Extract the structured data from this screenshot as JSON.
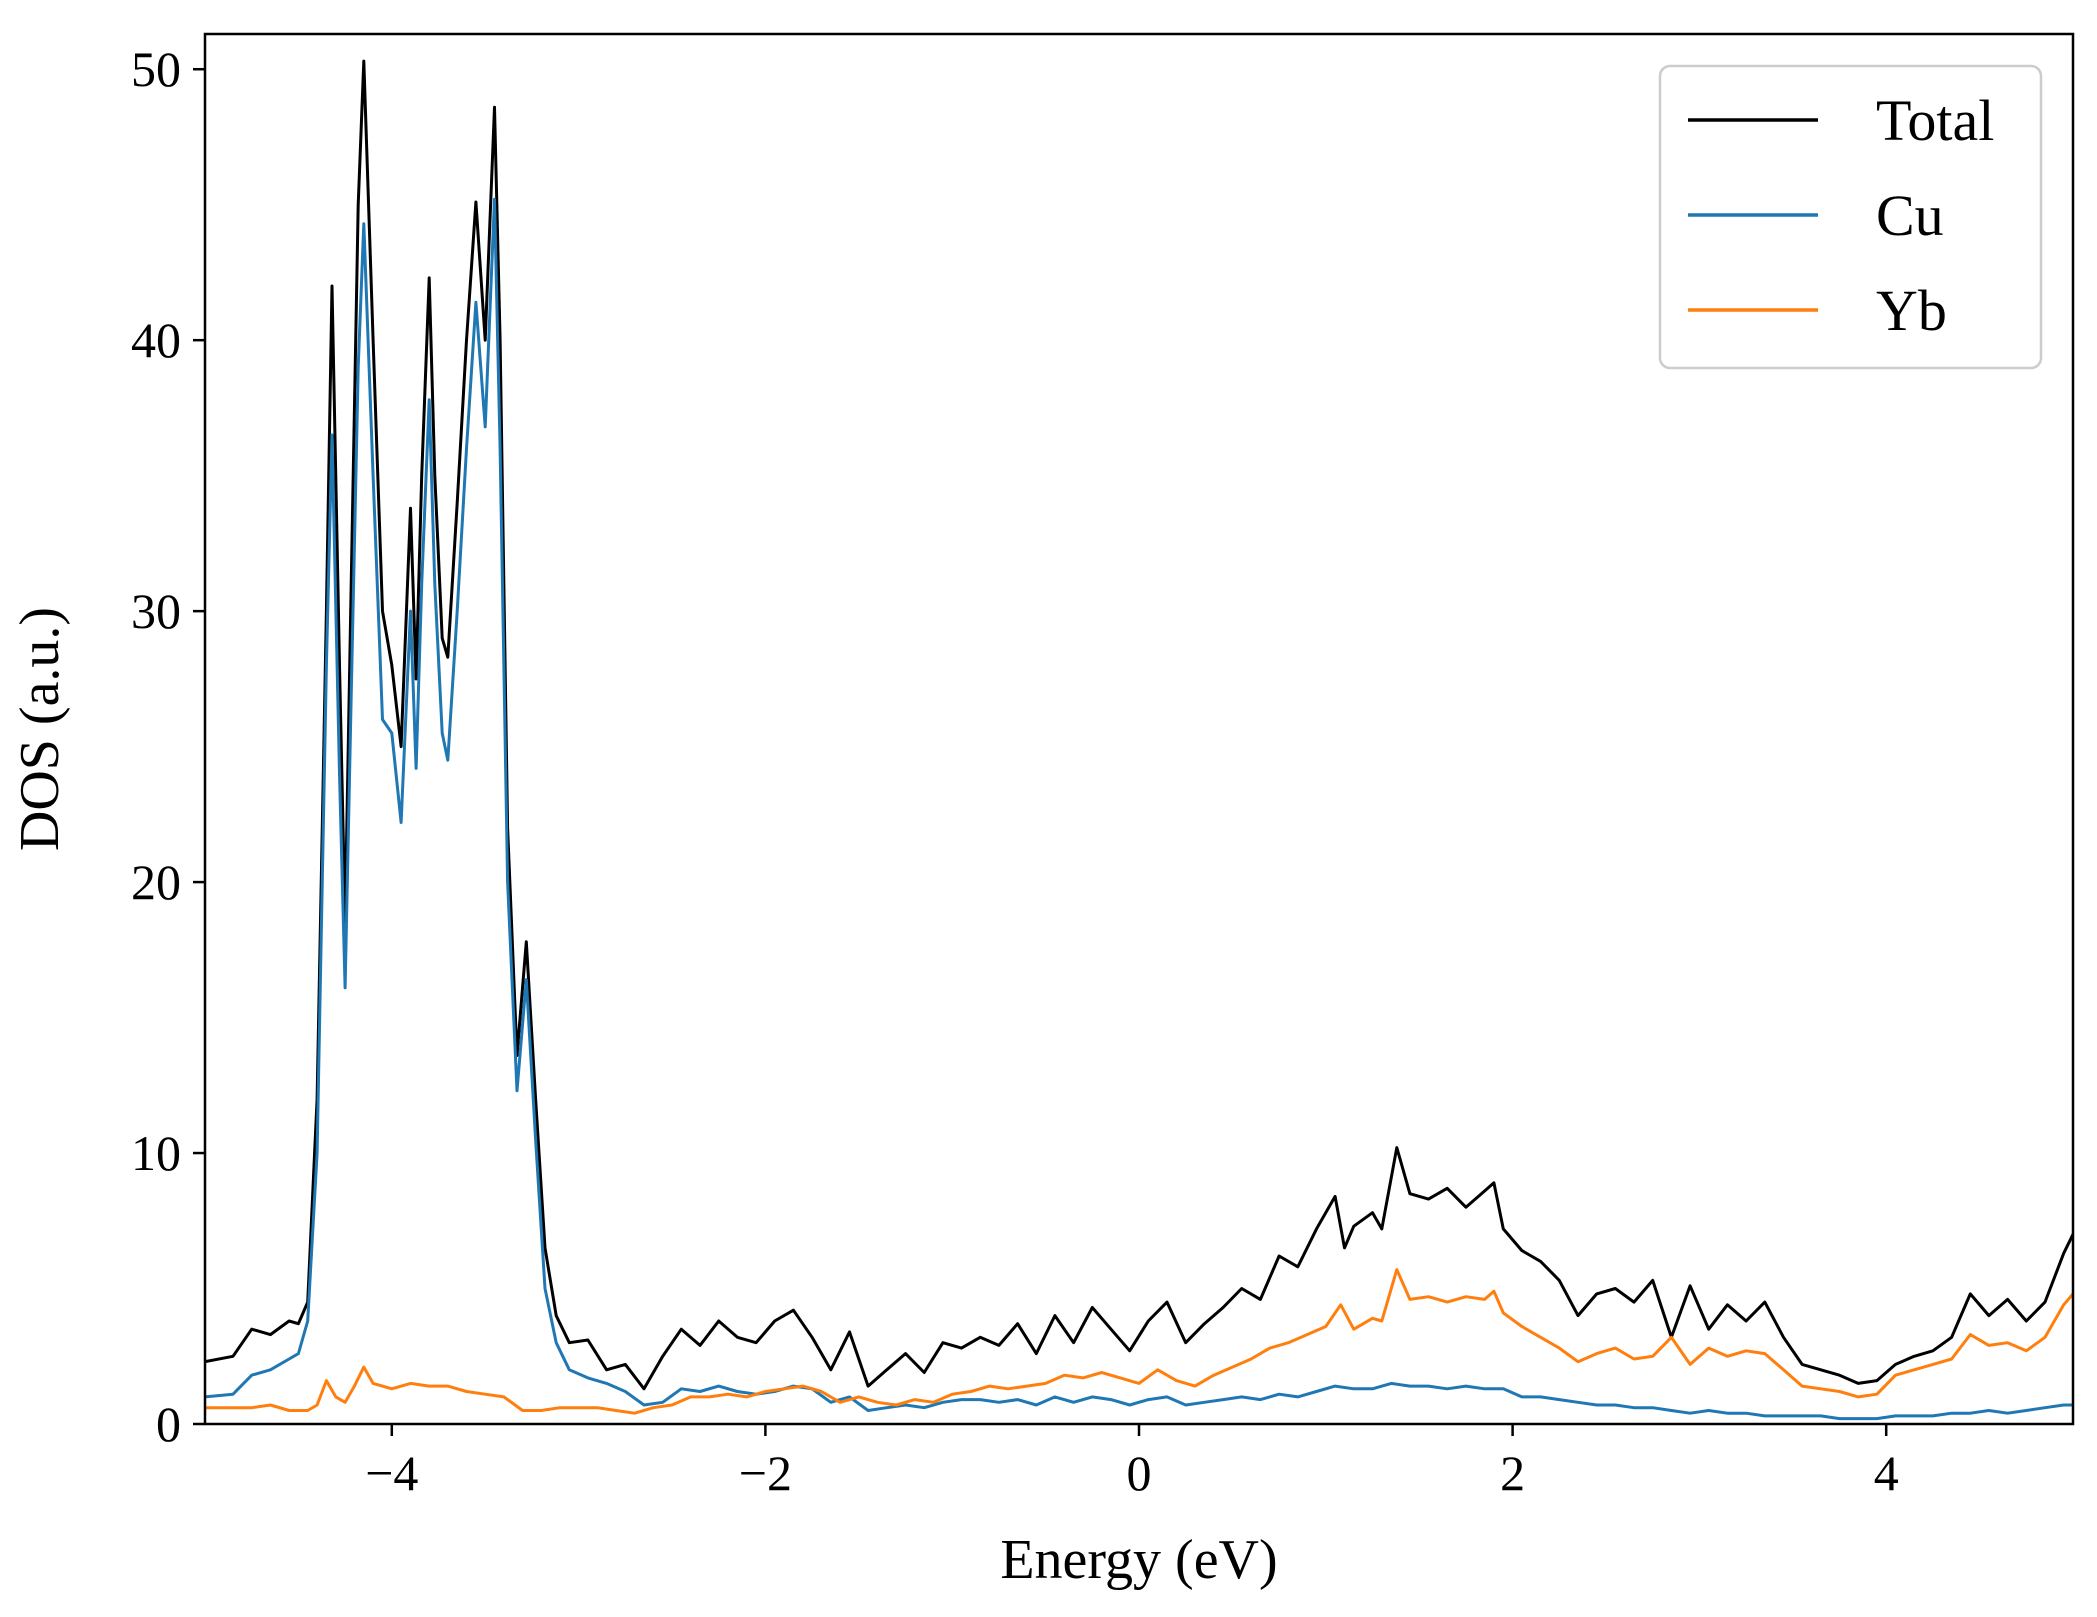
{
  "chart_data": {
    "type": "line",
    "xlabel": "Energy (eV)",
    "ylabel": "DOS (a.u.)",
    "xlim": [
      -5,
      5
    ],
    "ylim": [
      0,
      51.3
    ],
    "xticks": [
      -4,
      -2,
      0,
      2,
      4
    ],
    "xtick_labels": [
      "−4",
      "−2",
      "0",
      "2",
      "4"
    ],
    "yticks": [
      0,
      10,
      20,
      30,
      40,
      50
    ],
    "ytick_labels": [
      "0",
      "10",
      "20",
      "30",
      "40",
      "50"
    ],
    "grid": false,
    "legend_position": "top-right",
    "series": [
      {
        "name": "Total",
        "color": "#000000",
        "x": [
          -5.0,
          -4.85,
          -4.75,
          -4.65,
          -4.55,
          -4.5,
          -4.45,
          -4.4,
          -4.35,
          -4.32,
          -4.28,
          -4.25,
          -4.22,
          -4.18,
          -4.15,
          -4.1,
          -4.05,
          -4.0,
          -3.95,
          -3.9,
          -3.87,
          -3.84,
          -3.8,
          -3.77,
          -3.73,
          -3.7,
          -3.65,
          -3.6,
          -3.55,
          -3.5,
          -3.45,
          -3.42,
          -3.38,
          -3.33,
          -3.28,
          -3.23,
          -3.18,
          -3.12,
          -3.05,
          -2.95,
          -2.85,
          -2.75,
          -2.65,
          -2.55,
          -2.45,
          -2.35,
          -2.25,
          -2.15,
          -2.05,
          -1.95,
          -1.85,
          -1.75,
          -1.65,
          -1.55,
          -1.45,
          -1.35,
          -1.25,
          -1.15,
          -1.05,
          -0.95,
          -0.85,
          -0.75,
          -0.65,
          -0.55,
          -0.45,
          -0.35,
          -0.25,
          -0.15,
          -0.05,
          0.05,
          0.15,
          0.25,
          0.35,
          0.45,
          0.55,
          0.65,
          0.75,
          0.85,
          0.95,
          1.05,
          1.1,
          1.15,
          1.25,
          1.3,
          1.38,
          1.45,
          1.55,
          1.65,
          1.75,
          1.85,
          1.9,
          1.95,
          2.05,
          2.15,
          2.25,
          2.35,
          2.45,
          2.55,
          2.65,
          2.75,
          2.85,
          2.95,
          3.05,
          3.15,
          3.25,
          3.35,
          3.45,
          3.55,
          3.65,
          3.75,
          3.85,
          3.95,
          4.05,
          4.15,
          4.25,
          4.35,
          4.45,
          4.55,
          4.65,
          4.75,
          4.85,
          4.95,
          5.0
        ],
        "y": [
          2.3,
          2.5,
          3.5,
          3.3,
          3.8,
          3.7,
          4.5,
          12.0,
          30.0,
          42.0,
          28.0,
          18.5,
          30.0,
          45.0,
          50.3,
          40.0,
          30.0,
          28.0,
          25.0,
          33.8,
          27.5,
          35.0,
          42.3,
          35.0,
          29.0,
          28.3,
          34.0,
          40.0,
          45.1,
          40.0,
          48.6,
          40.0,
          22.0,
          13.6,
          17.8,
          12.0,
          6.5,
          4.0,
          3.0,
          3.1,
          2.0,
          2.2,
          1.3,
          2.5,
          3.5,
          2.9,
          3.8,
          3.2,
          3.0,
          3.8,
          4.2,
          3.2,
          2.0,
          3.4,
          1.4,
          2.0,
          2.6,
          1.9,
          3.0,
          2.8,
          3.2,
          2.9,
          3.7,
          2.6,
          4.0,
          3.0,
          4.3,
          3.5,
          2.7,
          3.8,
          4.5,
          3.0,
          3.7,
          4.3,
          5.0,
          4.6,
          6.2,
          5.8,
          7.2,
          8.4,
          6.5,
          7.3,
          7.8,
          7.2,
          10.2,
          8.5,
          8.3,
          8.7,
          8.0,
          8.6,
          8.9,
          7.2,
          6.4,
          6.0,
          5.3,
          4.0,
          4.8,
          5.0,
          4.5,
          5.3,
          3.2,
          5.1,
          3.5,
          4.4,
          3.8,
          4.5,
          3.2,
          2.2,
          2.0,
          1.8,
          1.5,
          1.6,
          2.2,
          2.5,
          2.7,
          3.2,
          4.8,
          4.0,
          4.6,
          3.8,
          4.5,
          6.3,
          7.0
        ]
      },
      {
        "name": "Cu",
        "color": "#1f77b4",
        "x": [
          -5.0,
          -4.85,
          -4.75,
          -4.65,
          -4.55,
          -4.5,
          -4.45,
          -4.4,
          -4.35,
          -4.32,
          -4.28,
          -4.25,
          -4.22,
          -4.18,
          -4.15,
          -4.1,
          -4.05,
          -4.0,
          -3.95,
          -3.9,
          -3.87,
          -3.84,
          -3.8,
          -3.77,
          -3.73,
          -3.7,
          -3.65,
          -3.6,
          -3.55,
          -3.5,
          -3.45,
          -3.42,
          -3.38,
          -3.33,
          -3.28,
          -3.23,
          -3.18,
          -3.12,
          -3.05,
          -2.95,
          -2.85,
          -2.75,
          -2.65,
          -2.55,
          -2.45,
          -2.35,
          -2.25,
          -2.15,
          -2.05,
          -1.95,
          -1.85,
          -1.75,
          -1.65,
          -1.55,
          -1.45,
          -1.35,
          -1.25,
          -1.15,
          -1.05,
          -0.95,
          -0.85,
          -0.75,
          -0.65,
          -0.55,
          -0.45,
          -0.35,
          -0.25,
          -0.15,
          -0.05,
          0.05,
          0.15,
          0.25,
          0.35,
          0.45,
          0.55,
          0.65,
          0.75,
          0.85,
          0.95,
          1.05,
          1.15,
          1.25,
          1.35,
          1.45,
          1.55,
          1.65,
          1.75,
          1.85,
          1.95,
          2.05,
          2.15,
          2.25,
          2.35,
          2.45,
          2.55,
          2.65,
          2.75,
          2.85,
          2.95,
          3.05,
          3.15,
          3.25,
          3.35,
          3.45,
          3.55,
          3.65,
          3.75,
          3.85,
          3.95,
          4.05,
          4.15,
          4.25,
          4.35,
          4.45,
          4.55,
          4.65,
          4.75,
          4.85,
          4.95,
          5.0
        ],
        "y": [
          1.0,
          1.1,
          1.8,
          2.0,
          2.4,
          2.6,
          3.8,
          10.0,
          28.0,
          36.5,
          24.0,
          16.1,
          26.0,
          39.0,
          44.3,
          35.0,
          26.0,
          25.5,
          22.2,
          30.0,
          24.2,
          31.0,
          37.8,
          31.0,
          25.5,
          24.5,
          30.0,
          36.0,
          41.4,
          36.8,
          45.2,
          36.0,
          20.0,
          12.3,
          16.4,
          10.5,
          5.0,
          3.0,
          2.0,
          1.7,
          1.5,
          1.2,
          0.7,
          0.8,
          1.3,
          1.2,
          1.4,
          1.2,
          1.1,
          1.2,
          1.4,
          1.3,
          0.8,
          1.0,
          0.5,
          0.6,
          0.7,
          0.6,
          0.8,
          0.9,
          0.9,
          0.8,
          0.9,
          0.7,
          1.0,
          0.8,
          1.0,
          0.9,
          0.7,
          0.9,
          1.0,
          0.7,
          0.8,
          0.9,
          1.0,
          0.9,
          1.1,
          1.0,
          1.2,
          1.4,
          1.3,
          1.3,
          1.5,
          1.4,
          1.4,
          1.3,
          1.4,
          1.3,
          1.3,
          1.0,
          1.0,
          0.9,
          0.8,
          0.7,
          0.7,
          0.6,
          0.6,
          0.5,
          0.4,
          0.5,
          0.4,
          0.4,
          0.3,
          0.3,
          0.3,
          0.3,
          0.2,
          0.2,
          0.2,
          0.3,
          0.3,
          0.3,
          0.4,
          0.4,
          0.5,
          0.4,
          0.5,
          0.6,
          0.7,
          0.7
        ]
      },
      {
        "name": "Yb",
        "color": "#ff7f0e",
        "x": [
          -5.0,
          -4.85,
          -4.75,
          -4.65,
          -4.55,
          -4.45,
          -4.4,
          -4.35,
          -4.3,
          -4.25,
          -4.2,
          -4.15,
          -4.1,
          -4.0,
          -3.9,
          -3.8,
          -3.7,
          -3.6,
          -3.5,
          -3.4,
          -3.3,
          -3.2,
          -3.1,
          -3.0,
          -2.9,
          -2.8,
          -2.7,
          -2.6,
          -2.5,
          -2.4,
          -2.3,
          -2.2,
          -2.1,
          -2.0,
          -1.9,
          -1.8,
          -1.7,
          -1.6,
          -1.5,
          -1.4,
          -1.3,
          -1.2,
          -1.1,
          -1.0,
          -0.9,
          -0.8,
          -0.7,
          -0.6,
          -0.5,
          -0.4,
          -0.3,
          -0.2,
          -0.1,
          0.0,
          0.1,
          0.2,
          0.3,
          0.4,
          0.5,
          0.6,
          0.7,
          0.8,
          0.9,
          1.0,
          1.08,
          1.15,
          1.25,
          1.3,
          1.38,
          1.45,
          1.55,
          1.65,
          1.75,
          1.85,
          1.9,
          1.95,
          2.05,
          2.15,
          2.25,
          2.35,
          2.45,
          2.55,
          2.65,
          2.75,
          2.85,
          2.95,
          3.05,
          3.15,
          3.25,
          3.35,
          3.45,
          3.55,
          3.65,
          3.75,
          3.85,
          3.95,
          4.05,
          4.15,
          4.25,
          4.35,
          4.45,
          4.55,
          4.65,
          4.75,
          4.85,
          4.95,
          5.0
        ],
        "y": [
          0.6,
          0.6,
          0.6,
          0.7,
          0.5,
          0.5,
          0.7,
          1.6,
          1.0,
          0.8,
          1.4,
          2.1,
          1.5,
          1.3,
          1.5,
          1.4,
          1.4,
          1.2,
          1.1,
          1.0,
          0.5,
          0.5,
          0.6,
          0.6,
          0.6,
          0.5,
          0.4,
          0.6,
          0.7,
          1.0,
          1.0,
          1.1,
          1.0,
          1.2,
          1.3,
          1.4,
          1.2,
          0.8,
          1.0,
          0.8,
          0.7,
          0.9,
          0.8,
          1.1,
          1.2,
          1.4,
          1.3,
          1.4,
          1.5,
          1.8,
          1.7,
          1.9,
          1.7,
          1.5,
          2.0,
          1.6,
          1.4,
          1.8,
          2.1,
          2.4,
          2.8,
          3.0,
          3.3,
          3.6,
          4.4,
          3.5,
          3.9,
          3.8,
          5.7,
          4.6,
          4.7,
          4.5,
          4.7,
          4.6,
          4.9,
          4.1,
          3.6,
          3.2,
          2.8,
          2.3,
          2.6,
          2.8,
          2.4,
          2.5,
          3.2,
          2.2,
          2.8,
          2.5,
          2.7,
          2.6,
          2.0,
          1.4,
          1.3,
          1.2,
          1.0,
          1.1,
          1.8,
          2.0,
          2.2,
          2.4,
          3.3,
          2.9,
          3.0,
          2.7,
          3.2,
          4.4,
          4.8
        ]
      }
    ]
  }
}
